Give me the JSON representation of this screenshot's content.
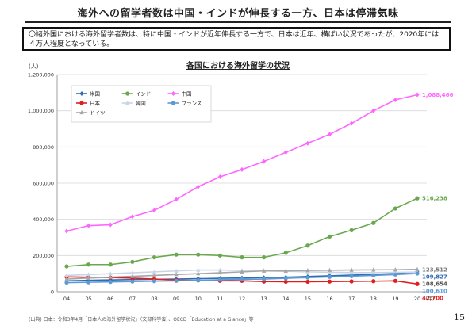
{
  "header": {
    "title": "海外への留学者数は中国・インドが伸長する一方、日本は停滞気味",
    "summary": "〇諸外国における海外留学者数は、特に中国・インドが近年伸長する一方で、日本は近年、横ばい状況であったが、2020年には４万人程度となっている。"
  },
  "chart_data": {
    "type": "line",
    "title": "各国における海外留学の状況",
    "unit_label": "(人)",
    "x_suffix": "(年)",
    "x": [
      "04",
      "05",
      "06",
      "07",
      "08",
      "09",
      "10",
      "11",
      "12",
      "13",
      "14",
      "15",
      "16",
      "17",
      "18",
      "19",
      "20"
    ],
    "ylim": [
      0,
      1200000
    ],
    "yticks": [
      "0",
      "200,000",
      "400,000",
      "600,000",
      "800,000",
      "1,000,000",
      "1,200,000"
    ],
    "grid": true,
    "legend_position": "top-left",
    "series": [
      {
        "name": "米国",
        "color": "#2e6db4",
        "marker": "diamond",
        "values": [
          60000,
          63000,
          65000,
          67000,
          68000,
          70000,
          72000,
          74000,
          76000,
          78000,
          80000,
          84000,
          88000,
          92000,
          96000,
          100000,
          109827
        ]
      },
      {
        "name": "インド",
        "color": "#6aa84f",
        "marker": "circle",
        "values": [
          140000,
          150000,
          150000,
          165000,
          190000,
          205000,
          205000,
          200000,
          190000,
          190000,
          215000,
          255000,
          305000,
          340000,
          380000,
          460000,
          516238
        ]
      },
      {
        "name": "中国",
        "color": "#ff66ff",
        "marker": "diamond",
        "values": [
          335000,
          365000,
          370000,
          415000,
          450000,
          510000,
          580000,
          635000,
          675000,
          720000,
          770000,
          820000,
          870000,
          930000,
          1000000,
          1060000,
          1088466
        ]
      },
      {
        "name": "日本",
        "color": "#e31c1c",
        "marker": "circle",
        "values": [
          82000,
          80000,
          78000,
          75000,
          70000,
          64000,
          62000,
          60000,
          60000,
          56000,
          55000,
          55000,
          56000,
          57000,
          58000,
          60000,
          42700
        ]
      },
      {
        "name": "韓国",
        "color": "#c9d4e8",
        "marker": "triangle",
        "values": [
          90000,
          95000,
          100000,
          105000,
          110000,
          115000,
          120000,
          120000,
          118000,
          116000,
          113000,
          110000,
          108000,
          106000,
          106000,
          107000,
          108654
        ]
      },
      {
        "name": "フランス",
        "color": "#5b9bd5",
        "marker": "circle",
        "values": [
          50000,
          52000,
          54000,
          56000,
          58000,
          60000,
          63000,
          66000,
          68000,
          70000,
          74000,
          78000,
          82000,
          86000,
          90000,
          95000,
          100610
        ]
      },
      {
        "name": "ドイツ",
        "color": "#a6a6a6",
        "marker": "triangle",
        "values": [
          70000,
          75000,
          80000,
          85000,
          90000,
          95000,
          100000,
          105000,
          110000,
          115000,
          115000,
          118000,
          119000,
          120000,
          121000,
          121500,
          123512
        ]
      }
    ],
    "end_labels": [
      {
        "series": "中国",
        "text": "1,088,466",
        "color": "#ff66ff"
      },
      {
        "series": "インド",
        "text": "516,238",
        "color": "#6aa84f"
      },
      {
        "series": "ドイツ",
        "text": "123,512",
        "color": "#777777"
      },
      {
        "series": "米国",
        "text": "109,827",
        "color": "#2e6db4"
      },
      {
        "series": "韓国",
        "text": "108,654",
        "color": "#555555"
      },
      {
        "series": "フランス",
        "text": "100,610",
        "color": "#5b9bd5"
      },
      {
        "series": "日本",
        "text": "42,700",
        "color": "#e31c1c"
      }
    ]
  },
  "footer": {
    "source": "(出典) 日本：令和3年4月「日本人の海外留学状況」（文部科学省）、OECD「Education at a Glance」等",
    "page_number": "15"
  }
}
